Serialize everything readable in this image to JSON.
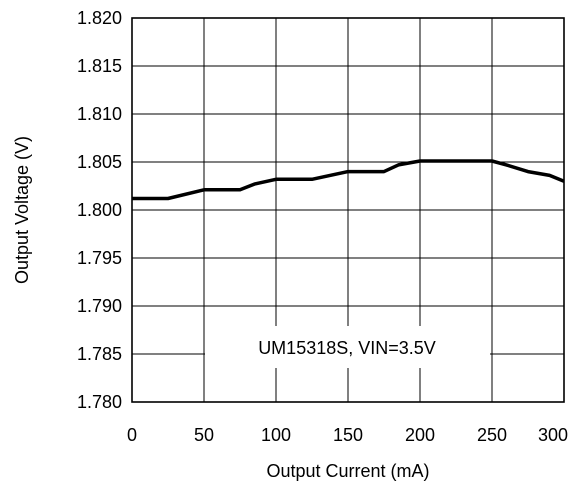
{
  "chart_data": {
    "type": "line",
    "title": "",
    "xlabel": "Output Current (mA)",
    "ylabel": "Output Voltage (V)",
    "xlim": [
      0,
      300
    ],
    "ylim": [
      1.78,
      1.82
    ],
    "x_ticks": [
      "0",
      "50",
      "100",
      "150",
      "200",
      "250",
      "300"
    ],
    "y_ticks": [
      "1.820",
      "1.815",
      "1.810",
      "1.805",
      "1.800",
      "1.795",
      "1.790",
      "1.785",
      "1.780"
    ],
    "grid": true,
    "annotation": "UM15318S, VIN=3.5V",
    "series": [
      {
        "color": "#000000",
        "x": [
          0,
          25,
          50,
          75,
          85,
          100,
          125,
          150,
          175,
          185,
          200,
          250,
          260,
          275,
          290,
          300
        ],
        "y": [
          1.8012,
          1.8012,
          1.8021,
          1.8021,
          1.8027,
          1.8032,
          1.8032,
          1.804,
          1.804,
          1.8047,
          1.8051,
          1.8051,
          1.8047,
          1.804,
          1.8036,
          1.803
        ]
      }
    ]
  }
}
